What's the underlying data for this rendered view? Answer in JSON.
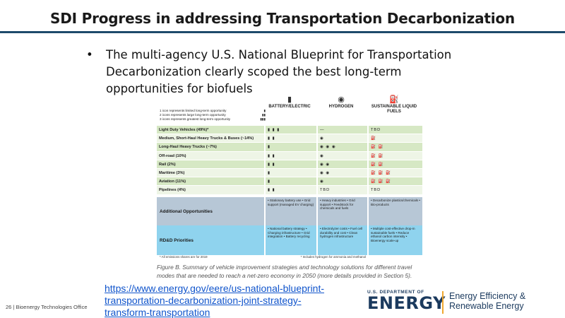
{
  "slide": {
    "title": "SDI Progress in addressing Transportation Decarbonization",
    "bullet": "The multi-agency U.S. National Blueprint for Transportation Decarbonization clearly scoped the best long-term opportunities for biofuels",
    "link": "https://www.energy.gov/eere/us-national-blueprint-transportation-decarbonization-joint-strategy-transform-transportation",
    "footer": "26 | Bioenergy Technologies Office",
    "accent_color": "#1d4a6b"
  },
  "figure": {
    "legend": [
      {
        "text": "1 icon represents limited long-term opportunity",
        "icons": "▮"
      },
      {
        "text": "2 icons represents large long-term opportunity",
        "icons": "▮▮"
      },
      {
        "text": "3 icons represents greatest long-term opportunity",
        "icons": "▮▮▮"
      }
    ],
    "columns": {
      "battery": "BATTERY/ELECTRIC",
      "hydrogen": "HYDROGEN",
      "fuels": "SUSTAINABLE LIQUID FUELS"
    },
    "rows": [
      {
        "label": "Light Duty Vehicles (49%)*",
        "battery": "▮ ▮ ▮",
        "hydrogen": "—",
        "fuels": "TBD"
      },
      {
        "label": "Medium, Short-Haul Heavy Trucks & Buses (~14%)",
        "battery": "▮ ▮",
        "hydrogen": "◉",
        "fuels": "⛽"
      },
      {
        "label": "Long-Haul Heavy Trucks (~7%)",
        "battery": "▮",
        "hydrogen": "◉ ◉ ◉",
        "fuels": "⛽ ⛽"
      },
      {
        "label": "Off-road (10%)",
        "battery": "▮ ▮",
        "hydrogen": "◉",
        "fuels": "⛽ ⛽"
      },
      {
        "label": "Rail (2%)",
        "battery": "▮ ▮",
        "hydrogen": "◉ ◉",
        "fuels": "⛽ ⛽"
      },
      {
        "label": "Maritime (3%)",
        "battery": "▮",
        "hydrogen": "◉ ◉",
        "fuels": "⛽ ⛽ ⛽"
      },
      {
        "label": "Aviation (11%)",
        "battery": "▮",
        "hydrogen": "◉",
        "fuels": "⛽ ⛽ ⛽"
      },
      {
        "label": "Pipelines (4%)",
        "battery": "▮ ▮",
        "hydrogen": "TBD",
        "fuels": "TBD"
      }
    ],
    "additional": {
      "label": "Additional Opportunities",
      "battery": "• Stationary battery use • Grid support (managed EV charging)",
      "hydrogen": "• Heavy industries • Grid support • Feedstock for chemicals and fuels",
      "fuels": "• Decarbonize plastics/chemicals • Bio-products"
    },
    "rdd": {
      "label": "RD&D Priorities",
      "battery": "• National battery strategy • Charging infrastructure • Grid integration • Battery recycling",
      "hydrogen": "• Electrolyzer costs • Fuel cell durability and cost • Clean hydrogen infrastructure",
      "fuels": "• Multiple cost-effective drop-in sustainable fuels • Reduce ethanol carbon intensity • Bioenergy scale-up"
    },
    "note_left": "* All emissions shares are for 2019",
    "note_right": "* Includes hydrogen for ammonia and methanol",
    "caption": "Figure B. Summary of vehicle improvement strategies and technology solutions for different travel modes that are needed to reach a net-zero economy in 2050 (more details provided in Section 5)."
  },
  "logo": {
    "dept": "U.S. DEPARTMENT OF",
    "energy": "ENERGY",
    "eere_line1": "Energy Efficiency &",
    "eere_line2": "Renewable Energy",
    "brand_color": "#1b3a5e",
    "separator_color": "#f0a830"
  }
}
